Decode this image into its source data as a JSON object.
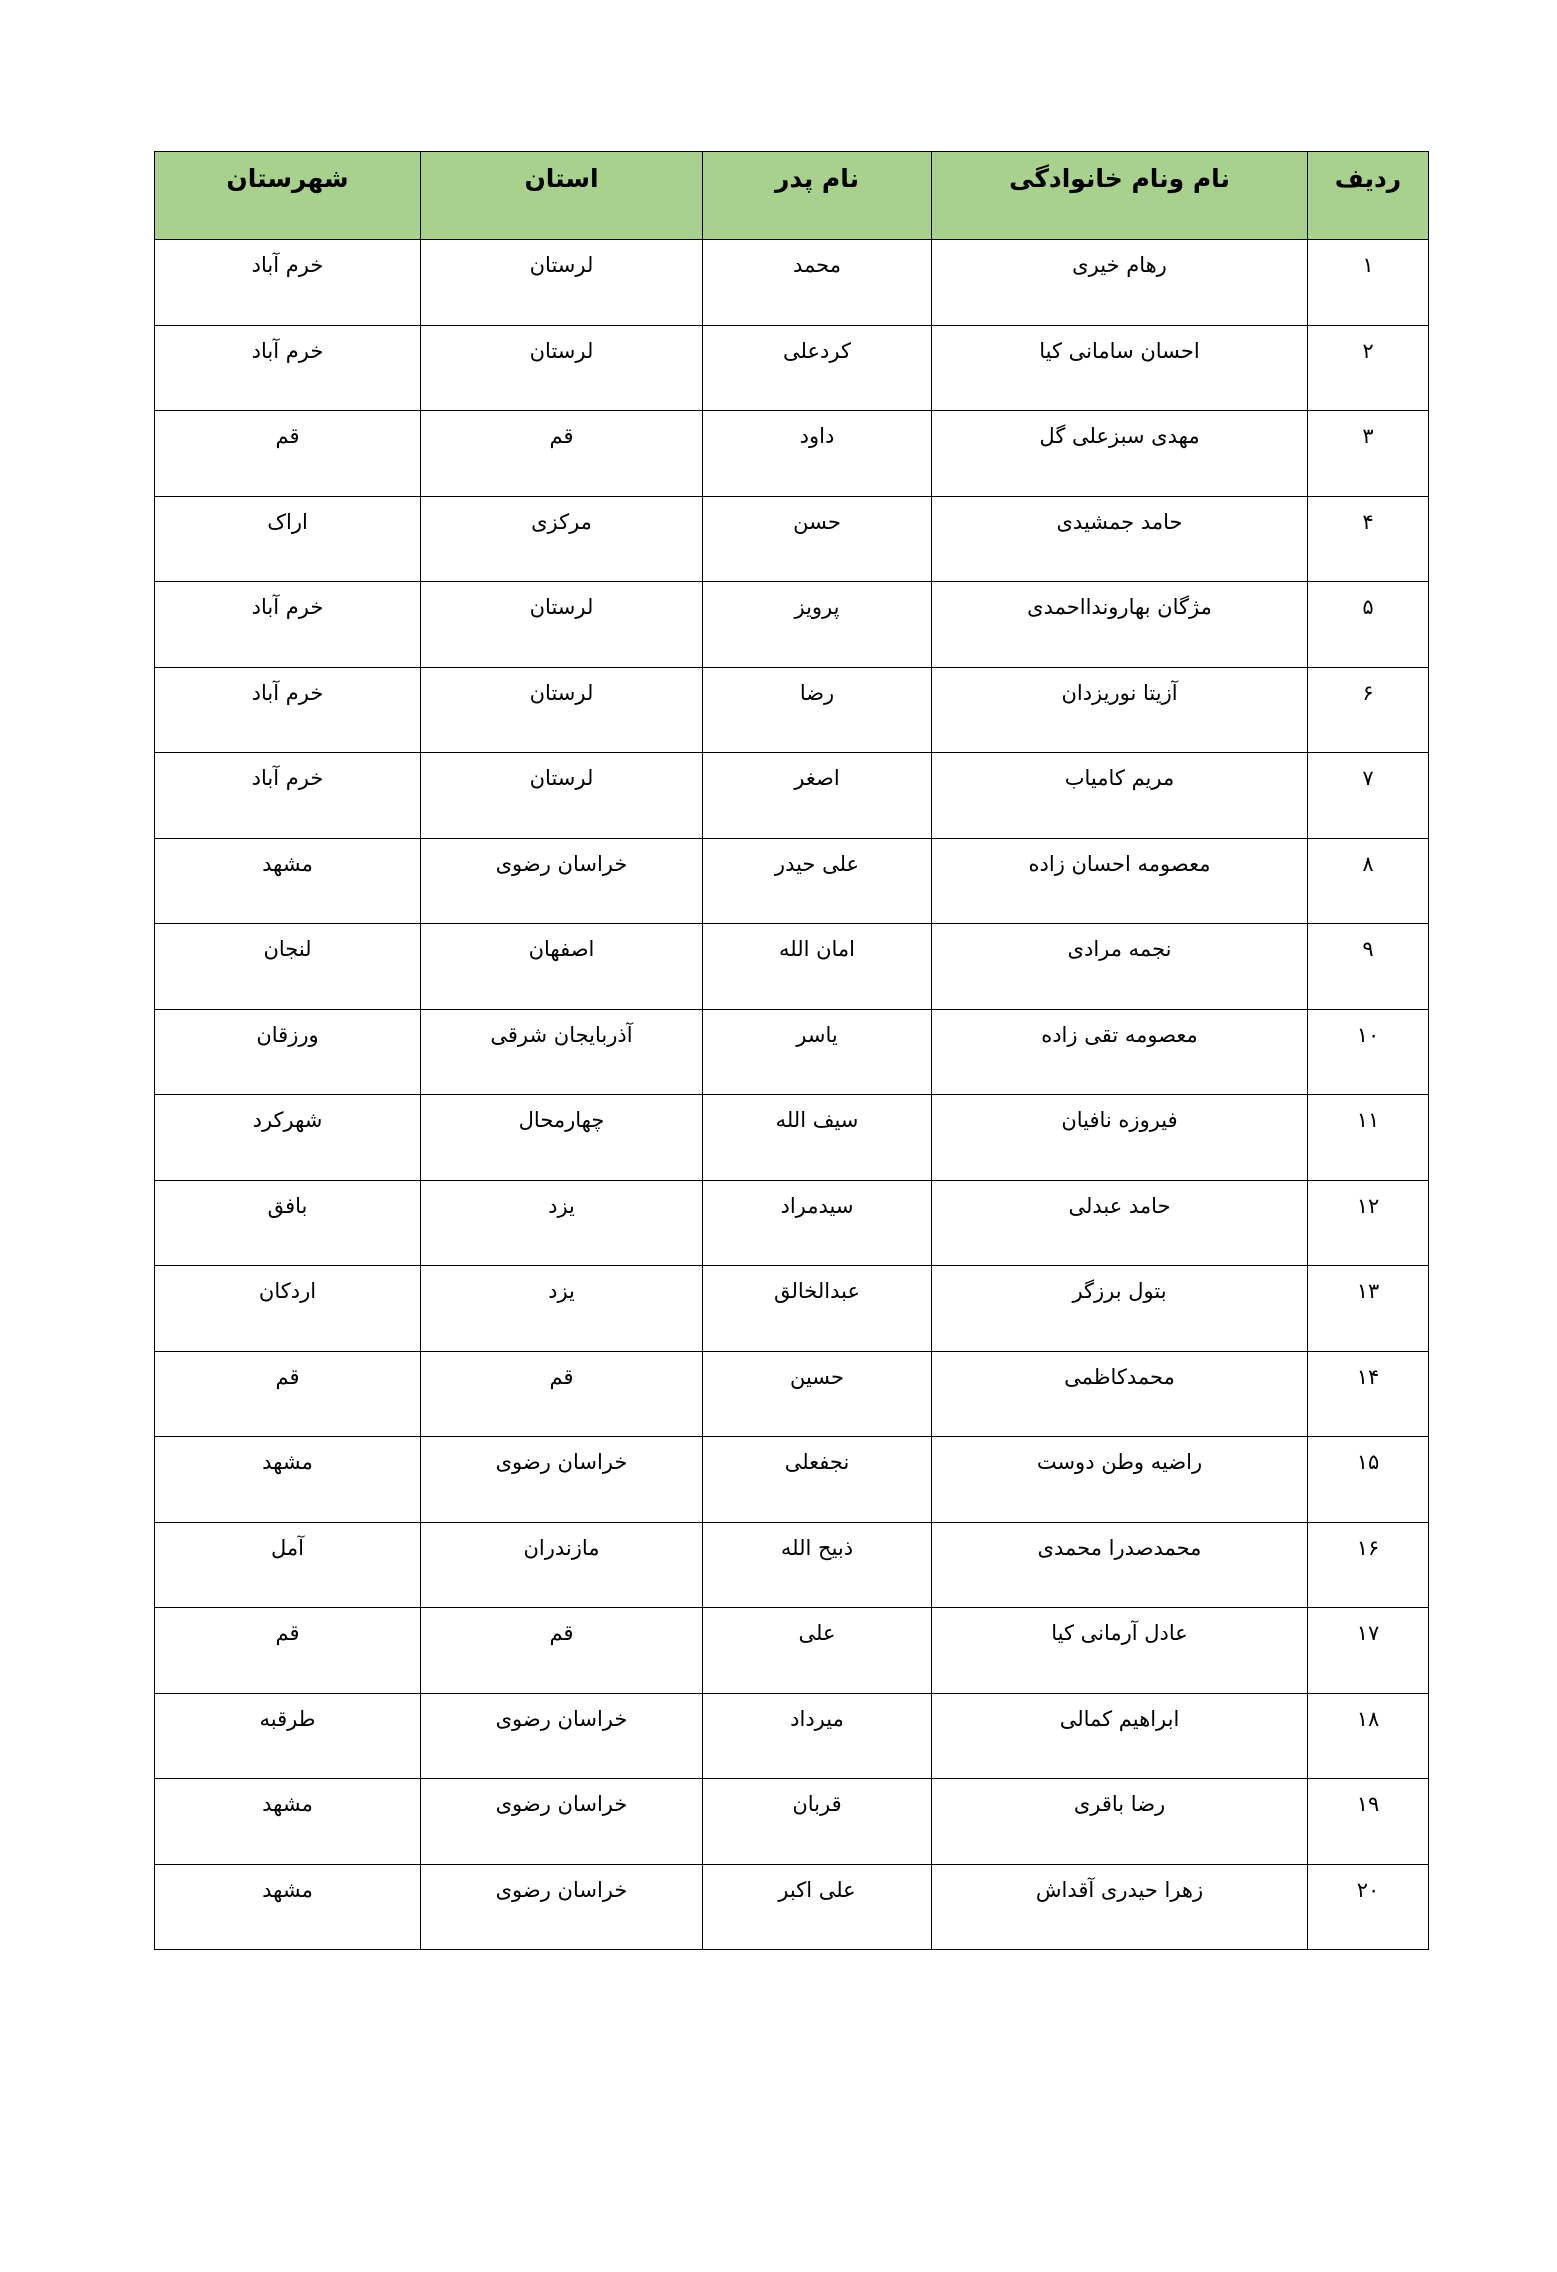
{
  "headers": {
    "row": "ردیف",
    "name": "نام ونام خانوادگی",
    "father": "نام پدر",
    "province": "استان",
    "city": "شهرستان"
  },
  "header_color": "#a9d18e",
  "rows": [
    {
      "row": "۱",
      "name": "رهام خیری",
      "father": "محمد",
      "province": "لرستان",
      "city": "خرم آباد"
    },
    {
      "row": "۲",
      "name": "احسان سامانی کیا",
      "father": "کردعلی",
      "province": "لرستان",
      "city": "خرم آباد"
    },
    {
      "row": "۳",
      "name": "مهدی سبزعلی گل",
      "father": "داود",
      "province": "قم",
      "city": "قم"
    },
    {
      "row": "۴",
      "name": "حامد جمشیدی",
      "father": "حسن",
      "province": "مرکزی",
      "city": "اراک"
    },
    {
      "row": "۵",
      "name": "مژگان بهاروندااحمدی",
      "father": "پرویز",
      "province": "لرستان",
      "city": "خرم آباد"
    },
    {
      "row": "۶",
      "name": "آزیتا نوریزدان",
      "father": "رضا",
      "province": "لرستان",
      "city": "خرم آباد"
    },
    {
      "row": "۷",
      "name": "مریم کامیاب",
      "father": "اصغر",
      "province": "لرستان",
      "city": "خرم آباد"
    },
    {
      "row": "۸",
      "name": "معصومه احسان زاده",
      "father": "علی حیدر",
      "province": "خراسان رضوی",
      "city": "مشهد"
    },
    {
      "row": "۹",
      "name": "نجمه مرادی",
      "father": "امان الله",
      "province": "اصفهان",
      "city": "لنجان"
    },
    {
      "row": "۱۰",
      "name": "معصومه تقی زاده",
      "father": "یاسر",
      "province": "آذربایجان شرقی",
      "city": "ورزقان"
    },
    {
      "row": "۱۱",
      "name": "فیروزه نافیان",
      "father": "سیف الله",
      "province": "چهارمحال",
      "city": "شهرکرد"
    },
    {
      "row": "۱۲",
      "name": "حامد عبدلی",
      "father": "سیدمراد",
      "province": "یزد",
      "city": "بافق"
    },
    {
      "row": "۱۳",
      "name": "بتول برزگر",
      "father": "عبدالخالق",
      "province": "یزد",
      "city": "اردکان"
    },
    {
      "row": "۱۴",
      "name": "محمدکاظمی",
      "father": "حسین",
      "province": "قم",
      "city": "قم"
    },
    {
      "row": "۱۵",
      "name": "راضیه وطن دوست",
      "father": "نجفعلی",
      "province": "خراسان رضوی",
      "city": "مشهد"
    },
    {
      "row": "۱۶",
      "name": "محمدصدرا محمدی",
      "father": "ذبیح الله",
      "province": "مازندران",
      "city": "آمل"
    },
    {
      "row": "۱۷",
      "name": "عادل آرمانی کیا",
      "father": "علی",
      "province": "قم",
      "city": "قم"
    },
    {
      "row": "۱۸",
      "name": "ابراهیم کمالی",
      "father": "میرداد",
      "province": "خراسان رضوی",
      "city": "طرقبه"
    },
    {
      "row": "۱۹",
      "name": "رضا باقری",
      "father": "قربان",
      "province": "خراسان رضوی",
      "city": "مشهد"
    },
    {
      "row": "۲۰",
      "name": "زهرا حیدری آقداش",
      "father": "علی اکبر",
      "province": "خراسان رضوی",
      "city": "مشهد"
    }
  ]
}
